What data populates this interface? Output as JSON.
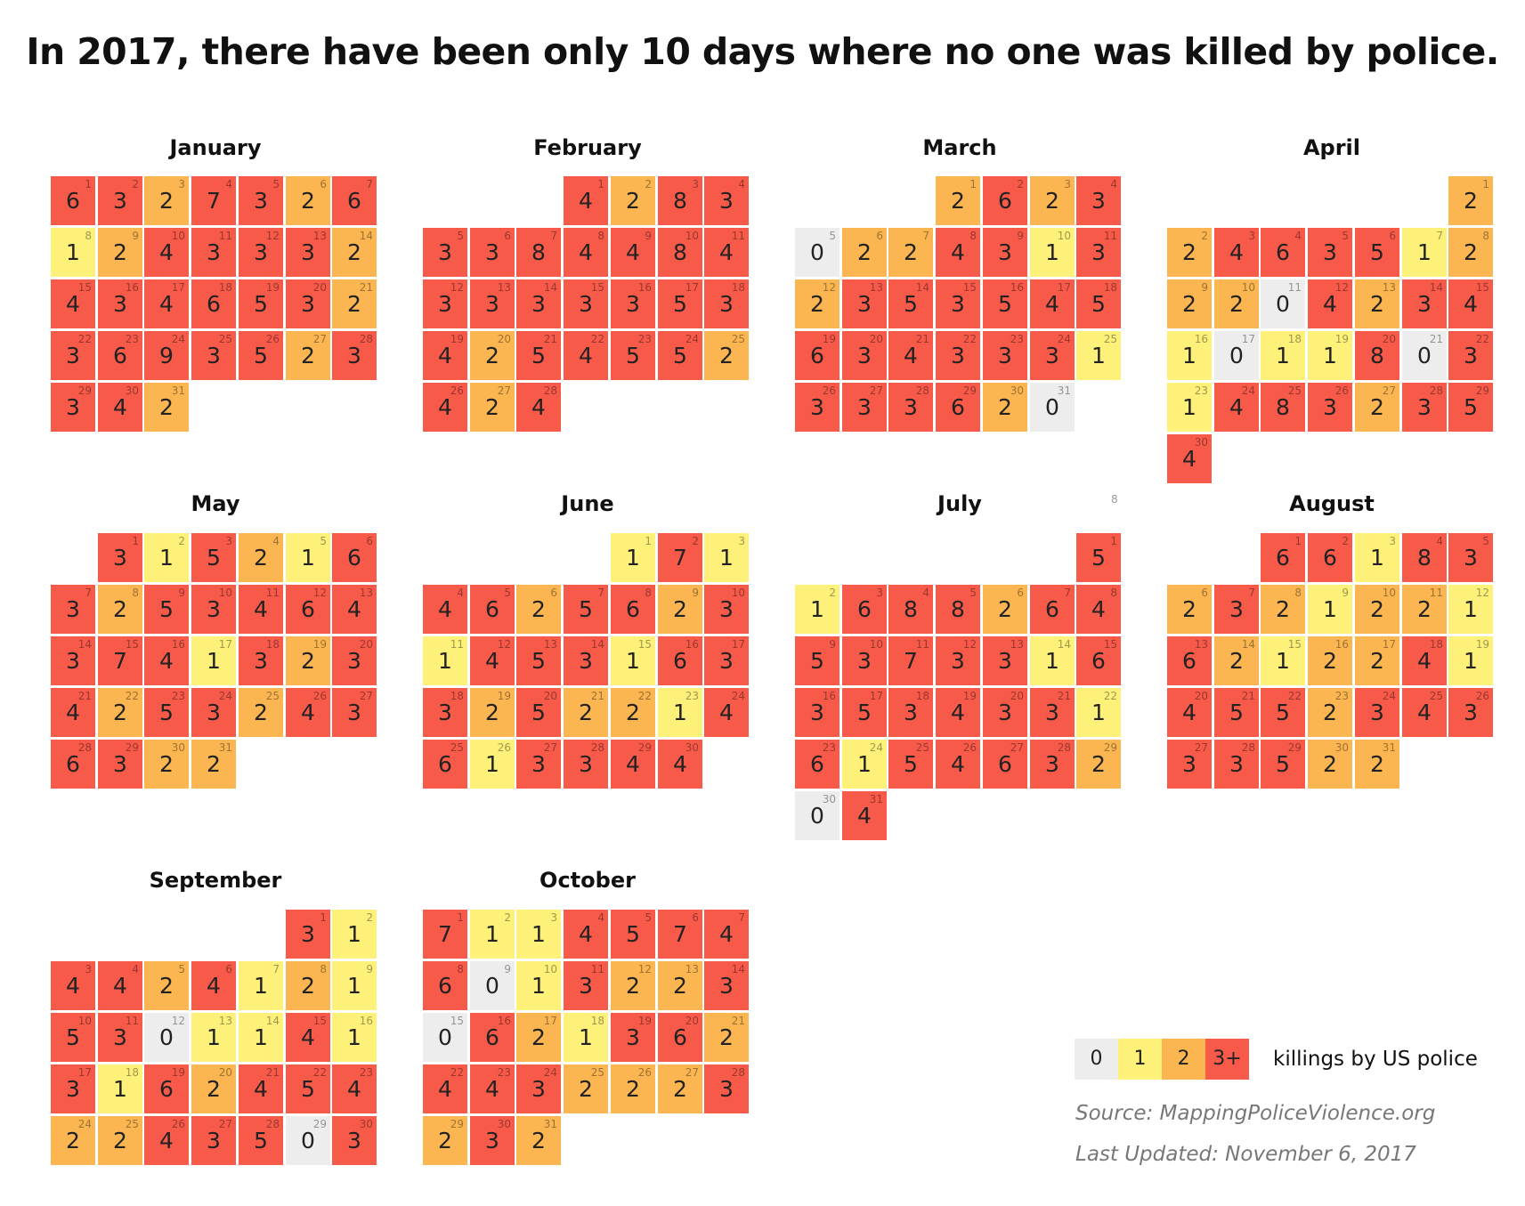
{
  "title": "In 2017, there have been only 10 days where no one was killed by police.",
  "colors": {
    "0": "#ededed",
    "1": "#fef17a",
    "2": "#fcb651",
    "3": "#f85a4a"
  },
  "legend": {
    "items": [
      {
        "label": "0",
        "level": 0
      },
      {
        "label": "1",
        "level": 1
      },
      {
        "label": "2",
        "level": 2
      },
      {
        "label": "3+",
        "level": 3
      }
    ],
    "text": "killings by US police"
  },
  "source": "Source: MappingPoliceViolence.org",
  "updated": "Last Updated: November 6, 2017",
  "stray_mark": "8",
  "chart_data": {
    "type": "heatmap",
    "title": "In 2017, there have been only 10 days where no one was killed by police.",
    "year": 2017,
    "legend_placement": "bottom-right",
    "months": [
      {
        "name": "January",
        "start_weekday": 0,
        "values": [
          6,
          3,
          2,
          7,
          3,
          2,
          6,
          1,
          2,
          4,
          3,
          3,
          3,
          2,
          4,
          3,
          4,
          6,
          5,
          3,
          2,
          3,
          6,
          9,
          3,
          5,
          2,
          3,
          3,
          4,
          2
        ]
      },
      {
        "name": "February",
        "start_weekday": 3,
        "values": [
          4,
          2,
          8,
          3,
          3,
          3,
          8,
          4,
          4,
          8,
          4,
          3,
          3,
          3,
          3,
          3,
          5,
          3,
          4,
          2,
          5,
          4,
          5,
          5,
          2,
          4,
          2,
          4
        ]
      },
      {
        "name": "March",
        "start_weekday": 3,
        "values": [
          2,
          6,
          2,
          3,
          0,
          2,
          2,
          4,
          3,
          1,
          3,
          2,
          3,
          5,
          3,
          5,
          4,
          5,
          6,
          3,
          4,
          3,
          3,
          3,
          1,
          3,
          3,
          3,
          6,
          2,
          0
        ]
      },
      {
        "name": "April",
        "start_weekday": 6,
        "values": [
          2,
          2,
          4,
          6,
          3,
          5,
          1,
          2,
          2,
          2,
          0,
          4,
          2,
          3,
          4,
          1,
          0,
          1,
          1,
          8,
          0,
          3,
          1,
          4,
          8,
          3,
          2,
          3,
          5,
          4
        ]
      },
      {
        "name": "May",
        "start_weekday": 1,
        "values": [
          3,
          1,
          5,
          2,
          1,
          6,
          3,
          2,
          5,
          3,
          4,
          6,
          4,
          3,
          7,
          4,
          1,
          3,
          2,
          3,
          4,
          2,
          5,
          3,
          2,
          4,
          3,
          6,
          3,
          2,
          2
        ]
      },
      {
        "name": "June",
        "start_weekday": 4,
        "values": [
          1,
          7,
          1,
          4,
          6,
          2,
          5,
          6,
          2,
          3,
          1,
          4,
          5,
          3,
          1,
          6,
          3,
          3,
          2,
          5,
          2,
          2,
          1,
          4,
          6,
          1,
          3,
          3,
          4,
          4
        ]
      },
      {
        "name": "July",
        "start_weekday": 6,
        "values": [
          5,
          1,
          6,
          8,
          8,
          2,
          6,
          4,
          5,
          3,
          7,
          3,
          3,
          1,
          6,
          3,
          5,
          3,
          4,
          3,
          3,
          1,
          6,
          1,
          5,
          4,
          6,
          3,
          2,
          0,
          4
        ]
      },
      {
        "name": "August",
        "start_weekday": 2,
        "values": [
          6,
          6,
          1,
          8,
          3,
          2,
          3,
          2,
          1,
          2,
          2,
          1,
          6,
          2,
          1,
          2,
          2,
          4,
          1,
          4,
          5,
          5,
          2,
          3,
          4,
          3,
          3,
          3,
          5,
          2,
          2
        ]
      },
      {
        "name": "September",
        "start_weekday": 5,
        "values": [
          3,
          1,
          4,
          4,
          2,
          4,
          1,
          2,
          1,
          5,
          3,
          0,
          1,
          1,
          4,
          1,
          3,
          1,
          6,
          2,
          4,
          5,
          4,
          2,
          2,
          4,
          3,
          5,
          0,
          3
        ]
      },
      {
        "name": "October",
        "start_weekday": 0,
        "values": [
          7,
          1,
          1,
          4,
          5,
          7,
          4,
          6,
          0,
          1,
          3,
          2,
          2,
          3,
          0,
          6,
          2,
          1,
          3,
          6,
          2,
          4,
          4,
          3,
          2,
          2,
          2,
          3,
          2,
          3,
          2
        ]
      }
    ]
  }
}
